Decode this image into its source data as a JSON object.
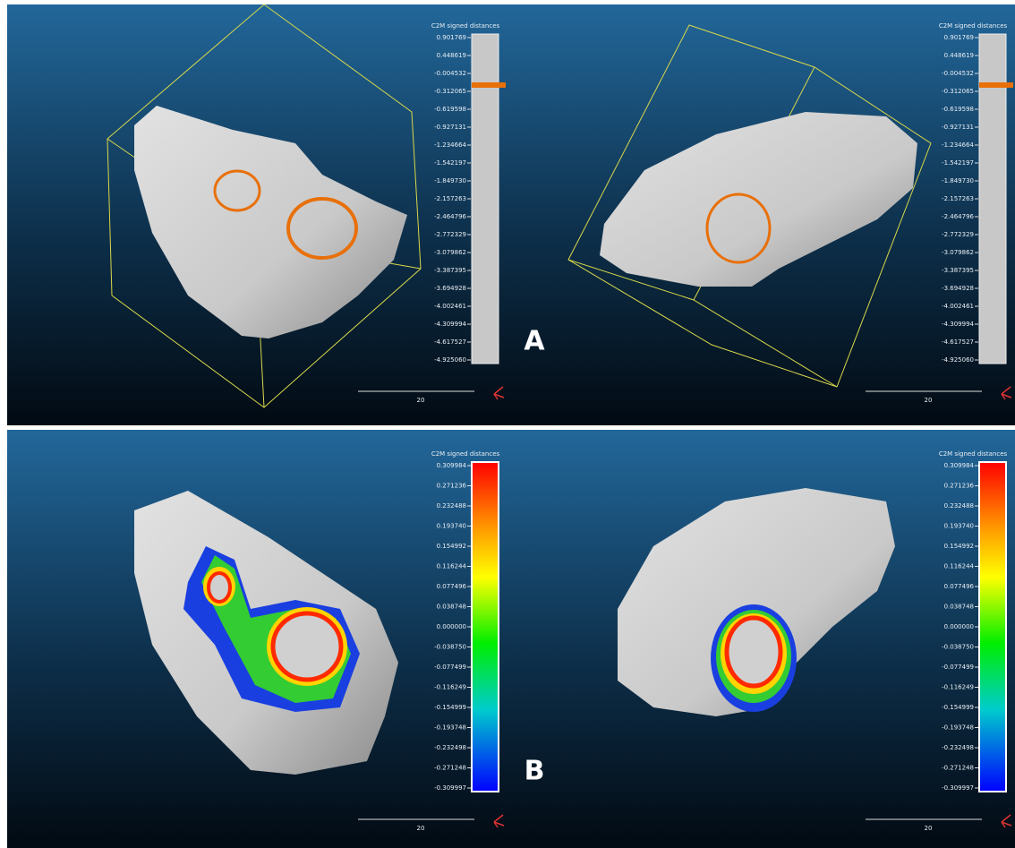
{
  "figure_labels": [
    "A",
    "B"
  ],
  "panels": [
    {
      "title": "C2M signed distances",
      "scale_label": "20",
      "ticks": [
        "0.901769",
        "0.448619",
        "-0.004532",
        "-0.312065",
        "-0.619598",
        "-0.927131",
        "-1.234664",
        "-1.542197",
        "-1.849730",
        "-2.157263",
        "-2.464796",
        "-2.772329",
        "-3.079862",
        "-3.387395",
        "-3.694928",
        "-4.002461",
        "-4.309994",
        "-4.617527",
        "-4.925060"
      ]
    },
    {
      "title": "C2M signed distances",
      "scale_label": "20",
      "ticks": [
        "0.901769",
        "0.448619",
        "-0.004532",
        "-0.312065",
        "-0.619598",
        "-0.927131",
        "-1.234664",
        "-1.542197",
        "-1.849730",
        "-2.157263",
        "-2.464796",
        "-2.772329",
        "-3.079862",
        "-3.387395",
        "-3.694928",
        "-4.002461",
        "-4.309994",
        "-4.617527",
        "-4.925060"
      ]
    },
    {
      "title": "C2M signed distances",
      "scale_label": "20",
      "ticks": [
        "0.309984",
        "0.271236",
        "0.232488",
        "0.193740",
        "0.154992",
        "0.116244",
        "0.077496",
        "0.038748",
        "0.000000",
        "-0.038750",
        "-0.077499",
        "-0.116249",
        "-0.154999",
        "-0.193748",
        "-0.232498",
        "-0.271248",
        "-0.309997"
      ]
    },
    {
      "title": "C2M signed distances",
      "scale_label": "20",
      "ticks": [
        "0.309984",
        "0.271236",
        "0.232488",
        "0.193740",
        "0.154992",
        "0.116244",
        "0.077496",
        "0.038748",
        "0.000000",
        "-0.038750",
        "-0.077499",
        "-0.116249",
        "-0.154999",
        "-0.193748",
        "-0.232498",
        "-0.271248",
        "-0.309997"
      ]
    }
  ]
}
